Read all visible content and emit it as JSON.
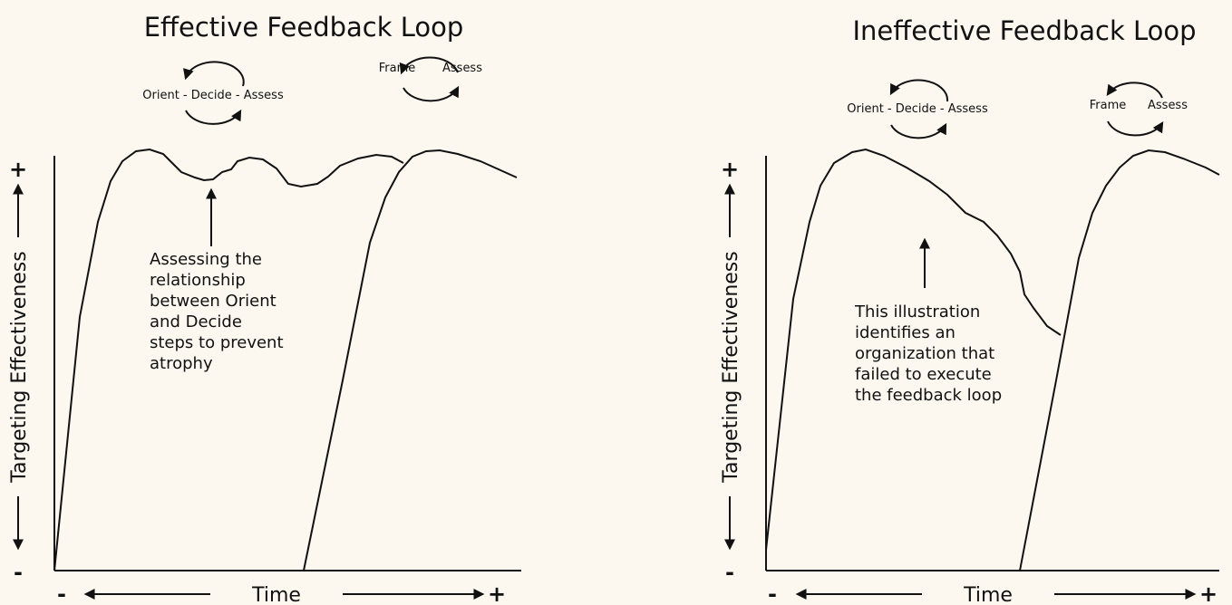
{
  "panels": [
    {
      "title": "Effective Feedback Loop",
      "loops": [
        {
          "labels": [
            "Orient - Decide - Assess"
          ]
        },
        {
          "labels": [
            "Frame",
            "Assess"
          ]
        }
      ],
      "annotation": [
        "Assessing the",
        "relationship",
        "between Orient",
        "and Decide",
        "steps to prevent",
        "atrophy"
      ],
      "y_axis": {
        "label": "Targeting Effectiveness",
        "plus": "+",
        "minus": "-"
      },
      "x_axis": {
        "label": "Time",
        "minus": "-",
        "plus": "+"
      }
    },
    {
      "title": "Ineffective Feedback Loop",
      "loops": [
        {
          "labels": [
            "Orient - Decide - Assess"
          ]
        },
        {
          "labels": [
            "Frame",
            "Assess"
          ]
        }
      ],
      "annotation": [
        "This illustration",
        "identifies an",
        "organization that",
        "failed to execute",
        "the feedback loop"
      ],
      "y_axis": {
        "label": "Targeting Effectiveness",
        "plus": "+",
        "minus": "-"
      },
      "x_axis": {
        "label": "Time",
        "minus": "-",
        "plus": "+"
      }
    }
  ]
}
